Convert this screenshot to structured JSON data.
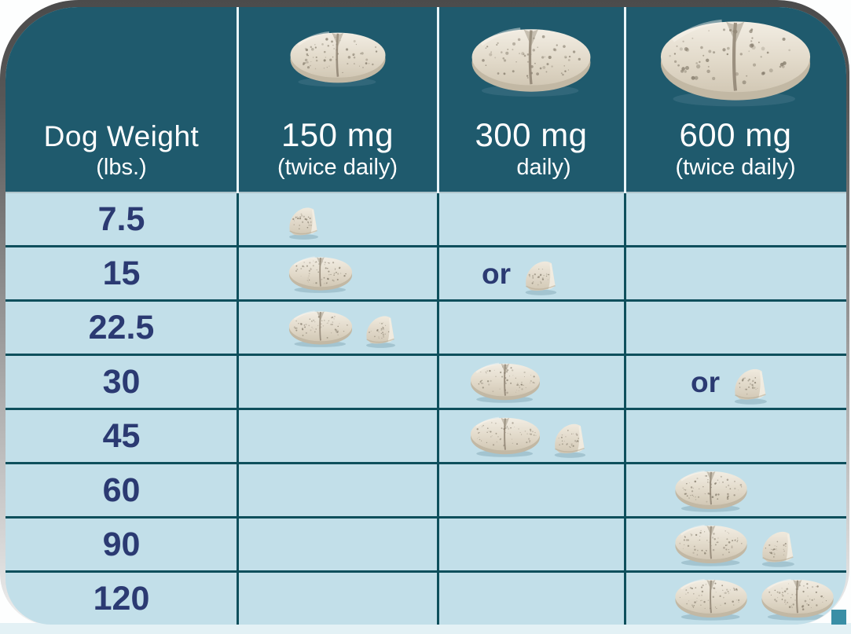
{
  "title": "Dog weight to tablet dose chart",
  "colors": {
    "header_bg": "#1F5A6D",
    "body_bg": "#C2DFE9",
    "grid_line": "#0E4F5C",
    "header_divider": "#E8F4F8",
    "weight_text": "#2B3A72",
    "header_text": "#FFFFFF",
    "pill_base": "#E2DACA",
    "pill_speckle": "#7D7464",
    "top_edge_shadow": "#4B4B4B",
    "bottom_strip": "#E3F1F5",
    "corner_artifact": "#3A8FA6"
  },
  "header": {
    "columns": [
      {
        "title": "Dog Weight",
        "subtitle": "(lbs.)",
        "pill_icon": null
      },
      {
        "title": "150 mg",
        "subtitle": "(twice daily)",
        "pill_icon": "pill-150-icon"
      },
      {
        "title": "300 mg",
        "subtitle": "daily)",
        "pill_icon": "pill-300-icon"
      },
      {
        "title": "600 mg",
        "subtitle": "(twice daily)",
        "pill_icon": "pill-600-icon"
      }
    ]
  },
  "or_label": "or",
  "rows": [
    {
      "weight": "7.5",
      "dose_150": {
        "full": 0,
        "half": 1,
        "or": false
      },
      "dose_300": null,
      "dose_600": null
    },
    {
      "weight": "15",
      "dose_150": {
        "full": 1,
        "half": 0,
        "or": false
      },
      "dose_300": {
        "full": 0,
        "half": 1,
        "or": true
      },
      "dose_600": null
    },
    {
      "weight": "22.5",
      "dose_150": {
        "full": 1,
        "half": 1,
        "or": false
      },
      "dose_300": null,
      "dose_600": null
    },
    {
      "weight": "30",
      "dose_150": null,
      "dose_300": {
        "full": 1,
        "half": 0,
        "or": false
      },
      "dose_600": {
        "full": 0,
        "half": 1,
        "or": true
      }
    },
    {
      "weight": "45",
      "dose_150": null,
      "dose_300": {
        "full": 1,
        "half": 1,
        "or": false
      },
      "dose_600": null
    },
    {
      "weight": "60",
      "dose_150": null,
      "dose_300": null,
      "dose_600": {
        "full": 1,
        "half": 0,
        "or": false
      }
    },
    {
      "weight": "90",
      "dose_150": null,
      "dose_300": null,
      "dose_600": {
        "full": 1,
        "half": 1,
        "or": false
      }
    },
    {
      "weight": "120",
      "dose_150": null,
      "dose_300": null,
      "dose_600": {
        "full": 2,
        "half": 0,
        "or": false
      }
    }
  ],
  "chart_data": {
    "type": "table",
    "title": "Tablet dosing by dog weight",
    "columns": [
      "Dog Weight (lbs.)",
      "150 mg (twice daily)",
      "300 mg daily)",
      "600 mg (twice daily)"
    ],
    "rows": [
      [
        "7.5",
        "0.5 tablet",
        "",
        ""
      ],
      [
        "15",
        "1 tablet",
        "or 0.5 tablet",
        ""
      ],
      [
        "22.5",
        "1.5 tablets",
        "",
        ""
      ],
      [
        "30",
        "",
        "1 tablet",
        "or 0.5 tablet"
      ],
      [
        "45",
        "",
        "1.5 tablets",
        ""
      ],
      [
        "60",
        "",
        "",
        "1 tablet"
      ],
      [
        "90",
        "",
        "",
        "1.5 tablets"
      ],
      [
        "120",
        "",
        "",
        "2 tablets"
      ]
    ]
  }
}
